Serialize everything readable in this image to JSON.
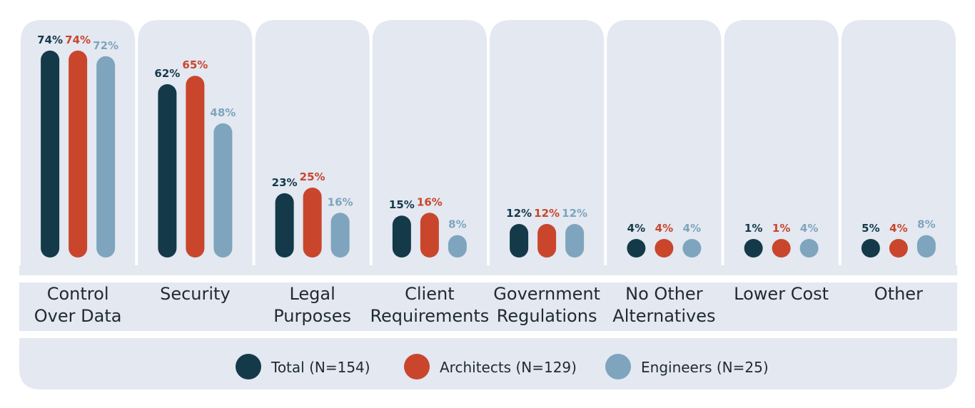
{
  "chart_data": {
    "type": "bar",
    "categories": [
      [
        "Control",
        "Over Data"
      ],
      [
        "Security"
      ],
      [
        "Legal",
        "Purposes"
      ],
      [
        "Client",
        "Requirements"
      ],
      [
        "Government",
        "Regulations"
      ],
      [
        "No Other",
        "Alternatives"
      ],
      [
        "Lower Cost"
      ],
      [
        "Other"
      ]
    ],
    "series": [
      {
        "name": "Total (N=154)",
        "values": [
          74,
          62,
          23,
          15,
          12,
          4,
          1,
          5
        ],
        "labels": [
          "74%",
          "62%",
          "23%",
          "15%",
          "12%",
          "4%",
          "1%",
          "5%"
        ]
      },
      {
        "name": "Architects (N=129)",
        "values": [
          74,
          65,
          25,
          16,
          12,
          4,
          1,
          4
        ],
        "labels": [
          "74%",
          "65%",
          "25%",
          "16%",
          "12%",
          "4%",
          "1%",
          "4%"
        ]
      },
      {
        "name": "Engineers (N=25)",
        "values": [
          72,
          48,
          16,
          8,
          12,
          4,
          4,
          8
        ],
        "labels": [
          "72%",
          "48%",
          "16%",
          "8%",
          "12%",
          "4%",
          "4%",
          "8%"
        ]
      }
    ],
    "ylim": [
      0,
      80
    ],
    "legend_position": "bottom"
  },
  "colors": {
    "total": "#143a4a",
    "architects": "#c9462c",
    "engineers": "#7ea5bd",
    "panel": "#e3e8f1"
  }
}
